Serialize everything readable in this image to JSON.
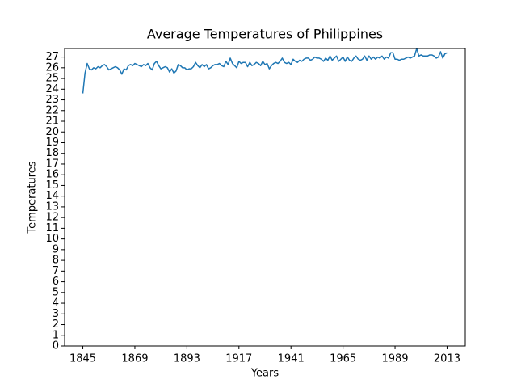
{
  "chart_data": {
    "type": "line",
    "title": "Average Temperatures of Philippines",
    "x_label": "Years",
    "y_label": "Temperatures",
    "color": "#1f77b4",
    "x": [
      1845,
      1846,
      1847,
      1848,
      1849,
      1850,
      1851,
      1852,
      1853,
      1854,
      1855,
      1856,
      1857,
      1858,
      1859,
      1860,
      1861,
      1862,
      1863,
      1864,
      1865,
      1866,
      1867,
      1868,
      1869,
      1870,
      1871,
      1872,
      1873,
      1874,
      1875,
      1876,
      1877,
      1878,
      1879,
      1880,
      1881,
      1882,
      1883,
      1884,
      1885,
      1886,
      1887,
      1888,
      1889,
      1890,
      1891,
      1892,
      1893,
      1894,
      1895,
      1896,
      1897,
      1898,
      1899,
      1900,
      1901,
      1902,
      1903,
      1904,
      1905,
      1906,
      1907,
      1908,
      1909,
      1910,
      1911,
      1912,
      1913,
      1914,
      1915,
      1916,
      1917,
      1918,
      1919,
      1920,
      1921,
      1922,
      1923,
      1924,
      1925,
      1926,
      1927,
      1928,
      1929,
      1930,
      1931,
      1932,
      1933,
      1934,
      1935,
      1936,
      1937,
      1938,
      1939,
      1940,
      1941,
      1942,
      1943,
      1944,
      1945,
      1946,
      1947,
      1948,
      1949,
      1950,
      1951,
      1952,
      1953,
      1954,
      1955,
      1956,
      1957,
      1958,
      1959,
      1960,
      1961,
      1962,
      1963,
      1964,
      1965,
      1966,
      1967,
      1968,
      1969,
      1970,
      1971,
      1972,
      1973,
      1974,
      1975,
      1976,
      1977,
      1978,
      1979,
      1980,
      1981,
      1982,
      1983,
      1984,
      1985,
      1986,
      1987,
      1988,
      1989,
      1990,
      1991,
      1992,
      1993,
      1994,
      1995,
      1996,
      1997,
      1998,
      1999,
      2000,
      2001,
      2002,
      2003,
      2004,
      2005,
      2006,
      2007,
      2008,
      2009,
      2010,
      2011,
      2012,
      2013
    ],
    "values": [
      23.6,
      25.5,
      26.4,
      25.9,
      25.8,
      26.0,
      25.9,
      26.1,
      26.0,
      26.2,
      26.3,
      26.1,
      25.8,
      25.9,
      26.0,
      26.1,
      26.0,
      25.8,
      25.4,
      25.9,
      25.8,
      26.2,
      26.3,
      26.2,
      26.4,
      26.3,
      26.2,
      26.1,
      26.3,
      26.2,
      26.4,
      26.0,
      25.8,
      26.4,
      26.6,
      26.2,
      25.9,
      26.0,
      26.1,
      26.0,
      25.6,
      25.9,
      25.5,
      25.7,
      26.3,
      26.2,
      26.0,
      26.0,
      25.8,
      25.9,
      25.9,
      26.1,
      26.5,
      26.2,
      26.0,
      26.3,
      26.1,
      26.3,
      25.9,
      26.0,
      26.2,
      26.3,
      26.3,
      26.4,
      26.2,
      26.1,
      26.6,
      26.3,
      26.9,
      26.4,
      26.2,
      26.0,
      26.6,
      26.4,
      26.5,
      26.5,
      26.1,
      26.5,
      26.2,
      26.3,
      26.5,
      26.4,
      26.2,
      26.6,
      26.3,
      26.4,
      25.9,
      26.2,
      26.4,
      26.5,
      26.4,
      26.6,
      26.9,
      26.5,
      26.4,
      26.5,
      26.3,
      26.8,
      26.6,
      26.5,
      26.7,
      26.6,
      26.8,
      26.9,
      26.9,
      26.7,
      26.8,
      27.0,
      26.9,
      26.9,
      26.8,
      26.6,
      26.9,
      26.7,
      27.1,
      26.7,
      26.9,
      27.1,
      26.6,
      26.8,
      27.0,
      26.6,
      27.0,
      26.7,
      26.6,
      26.9,
      27.1,
      26.8,
      26.7,
      26.8,
      27.1,
      26.7,
      27.1,
      26.8,
      27.0,
      26.8,
      27.0,
      26.9,
      27.1,
      26.8,
      27.0,
      26.9,
      27.4,
      27.4,
      26.8,
      26.8,
      26.7,
      26.8,
      26.8,
      26.9,
      27.0,
      26.9,
      27.0,
      27.1,
      27.8,
      27.1,
      27.2,
      27.1,
      27.1,
      27.1,
      27.2,
      27.2,
      27.1,
      26.9,
      27.0,
      27.5,
      26.9,
      27.3,
      27.4
    ],
    "xlim": [
      1836.6,
      2021.4
    ],
    "xticks": [
      1845,
      1869,
      1893,
      1917,
      1941,
      1965,
      1989,
      2013
    ],
    "ylim": [
      0,
      27.8
    ],
    "yticks": [
      0,
      1,
      2,
      3,
      4,
      5,
      6,
      7,
      8,
      9,
      10,
      11,
      12,
      13,
      14,
      15,
      16,
      17,
      18,
      19,
      20,
      21,
      22,
      23,
      24,
      25,
      26,
      27
    ]
  }
}
